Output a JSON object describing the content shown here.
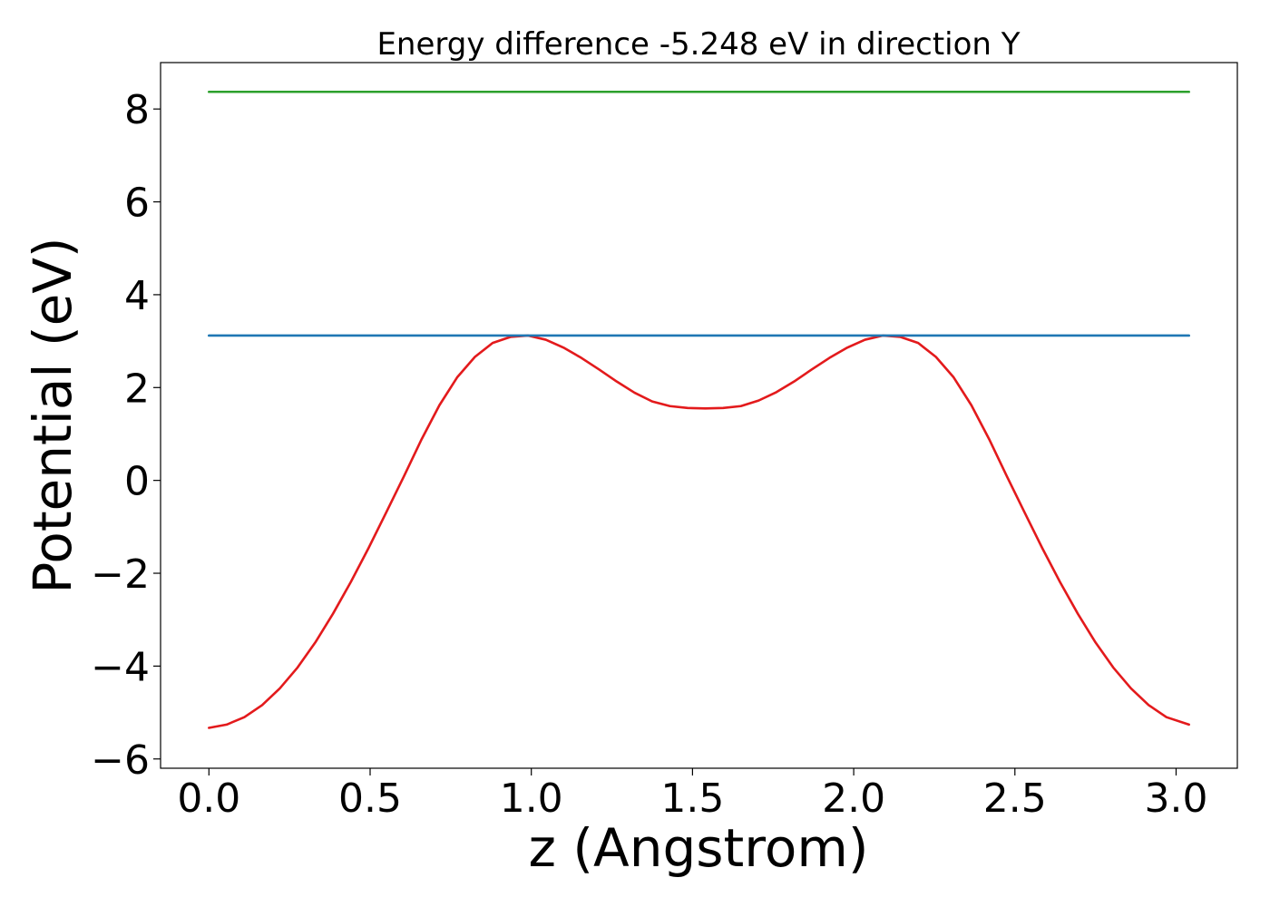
{
  "chart_data": {
    "type": "line",
    "title": "Energy difference -5.248 eV in direction Y",
    "xlabel": "z (Angstrom)",
    "ylabel": "Potential (eV)",
    "xlim": [
      -0.15,
      3.19
    ],
    "ylim": [
      -6.2,
      9.0
    ],
    "xticks": [
      0.0,
      0.5,
      1.0,
      1.5,
      2.0,
      2.5,
      3.0
    ],
    "xtick_labels": [
      "0.0",
      "0.5",
      "1.0",
      "1.5",
      "2.0",
      "2.5",
      "3.0"
    ],
    "yticks": [
      -6,
      -4,
      -2,
      0,
      2,
      4,
      6,
      8
    ],
    "ytick_labels": [
      "−6",
      "−4",
      "−2",
      "0",
      "2",
      "4",
      "6",
      "8"
    ],
    "grid": false,
    "series": [
      {
        "name": "potential",
        "color": "#e31a1c",
        "x": [
          0.0,
          0.055,
          0.11,
          0.165,
          0.22,
          0.275,
          0.33,
          0.385,
          0.44,
          0.495,
          0.55,
          0.605,
          0.66,
          0.715,
          0.77,
          0.825,
          0.88,
          0.935,
          0.99,
          1.045,
          1.1,
          1.155,
          1.21,
          1.265,
          1.32,
          1.375,
          1.43,
          1.485,
          1.54,
          1.595,
          1.65,
          1.705,
          1.76,
          1.815,
          1.87,
          1.925,
          1.98,
          2.035,
          2.09,
          2.145,
          2.2,
          2.255,
          2.31,
          2.365,
          2.42,
          2.475,
          2.53,
          2.585,
          2.64,
          2.695,
          2.75,
          2.805,
          2.86,
          2.915,
          2.97,
          3.04
        ],
        "y": [
          -5.33,
          -5.26,
          -5.1,
          -4.84,
          -4.48,
          -4.03,
          -3.49,
          -2.87,
          -2.19,
          -1.46,
          -0.69,
          0.09,
          0.89,
          1.62,
          2.22,
          2.66,
          2.96,
          3.09,
          3.12,
          3.03,
          2.86,
          2.64,
          2.39,
          2.13,
          1.89,
          1.7,
          1.6,
          1.56,
          1.55,
          1.56,
          1.6,
          1.72,
          1.9,
          2.13,
          2.39,
          2.64,
          2.86,
          3.03,
          3.12,
          3.09,
          2.96,
          2.66,
          2.22,
          1.62,
          0.89,
          0.09,
          -0.69,
          -1.46,
          -2.19,
          -2.87,
          -3.49,
          -4.03,
          -4.48,
          -4.84,
          -5.1,
          -5.26
        ]
      },
      {
        "name": "max-line",
        "color": "#1f77b4",
        "x": [
          0.0,
          3.04
        ],
        "y": [
          3.12,
          3.12
        ]
      },
      {
        "name": "reference-line",
        "color": "#2ca02c",
        "x": [
          0.0,
          3.04
        ],
        "y": [
          8.37,
          8.37
        ]
      }
    ]
  }
}
